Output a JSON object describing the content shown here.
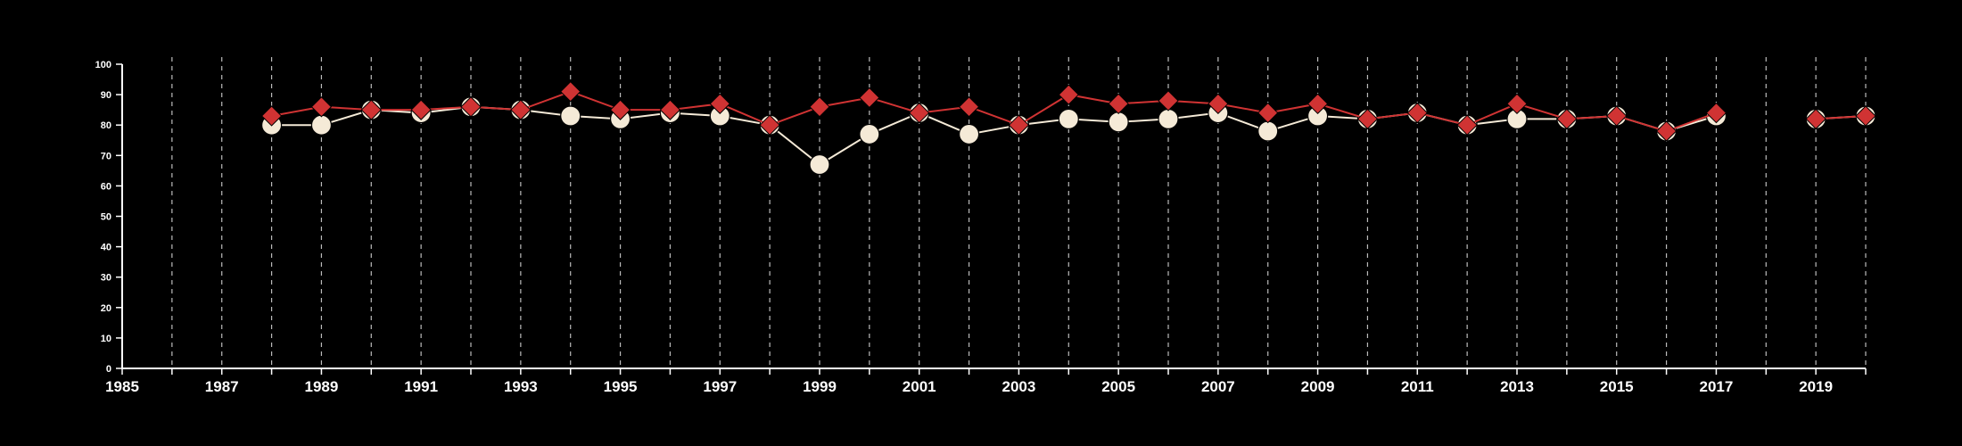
{
  "chart_data": {
    "type": "line",
    "title": "",
    "xlabel": "",
    "ylabel": "",
    "xlim": [
      1985,
      2020
    ],
    "ylim": [
      0,
      100
    ],
    "grid": {
      "vertical": true,
      "horizontal": false,
      "style": "dashed"
    },
    "x_ticks": [
      1985,
      1987,
      1989,
      1991,
      1993,
      1995,
      1997,
      1999,
      2001,
      2003,
      2005,
      2007,
      2009,
      2011,
      2013,
      2015,
      2017,
      2019
    ],
    "y_ticks": [
      0,
      10,
      20,
      30,
      40,
      50,
      60,
      70,
      80,
      90,
      100
    ],
    "series": [
      {
        "color": "#f5ead7",
        "marker": "circle",
        "x": [
          1988,
          1989,
          1990,
          1991,
          1992,
          1993,
          1994,
          1995,
          1996,
          1997,
          1998,
          1999,
          2000,
          2001,
          2002,
          2003,
          2004,
          2005,
          2006,
          2007,
          2008,
          2009,
          2010,
          2011,
          2012,
          2013,
          2014,
          2015,
          2016,
          2017,
          2019,
          2020
        ],
        "values": [
          80,
          80,
          85,
          84,
          86,
          85,
          83,
          82,
          84,
          83,
          80,
          67,
          77,
          84,
          77,
          80,
          82,
          81,
          82,
          84,
          78,
          83,
          82,
          84,
          80,
          82,
          82,
          83,
          78,
          83,
          82,
          83
        ]
      },
      {
        "color": "#d03333",
        "marker": "diamond",
        "x": [
          1988,
          1989,
          1990,
          1991,
          1992,
          1993,
          1994,
          1995,
          1996,
          1997,
          1998,
          1999,
          2000,
          2001,
          2002,
          2003,
          2004,
          2005,
          2006,
          2007,
          2008,
          2009,
          2010,
          2011,
          2012,
          2013,
          2014,
          2015,
          2016,
          2017,
          2019,
          2020
        ],
        "values": [
          83,
          86,
          85,
          85,
          86,
          85,
          91,
          85,
          85,
          87,
          80,
          86,
          89,
          84,
          86,
          80,
          90,
          87,
          88,
          87,
          84,
          87,
          82,
          84,
          80,
          87,
          82,
          83,
          78,
          84,
          82,
          83
        ]
      }
    ]
  },
  "colors": {
    "background": "#000000",
    "axis": "#ffffff",
    "grid": "#bbbbbb"
  }
}
